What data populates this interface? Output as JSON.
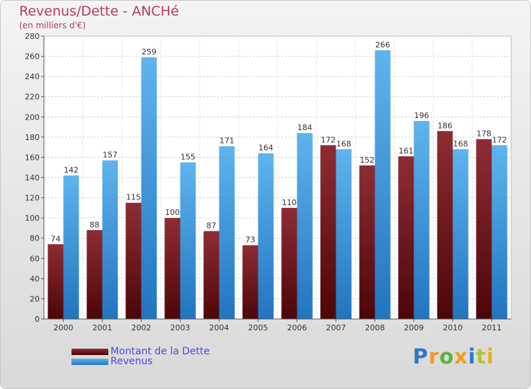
{
  "chart_data": {
    "type": "bar",
    "title": "Revenus/Dette - ANCHé",
    "subtitle": "(en milliers d'€)",
    "categories": [
      "2000",
      "2001",
      "2002",
      "2003",
      "2004",
      "2005",
      "2006",
      "2007",
      "2008",
      "2009",
      "2010",
      "2011"
    ],
    "series": [
      {
        "name": "Montant de la Dette",
        "color": "#7a1c24",
        "values": [
          74,
          88,
          115,
          100,
          87,
          73,
          110,
          172,
          152,
          161,
          186,
          178
        ]
      },
      {
        "name": "Revenus",
        "color": "#3d9ee6",
        "values": [
          142,
          157,
          259,
          155,
          171,
          164,
          184,
          168,
          266,
          196,
          168,
          172
        ]
      }
    ],
    "ylim": [
      0,
      280
    ],
    "yticks": [
      0,
      20,
      40,
      60,
      80,
      100,
      120,
      140,
      160,
      180,
      200,
      220,
      240,
      260,
      280
    ],
    "grid": true,
    "legend": "bottom-left"
  },
  "logo": {
    "text": "Proxiti",
    "colors": [
      "#2c78c8",
      "#f39a1f",
      "#59b33a",
      "#e8a21b",
      "#2c78c8",
      "#b0c730",
      "#e0b21a"
    ]
  }
}
